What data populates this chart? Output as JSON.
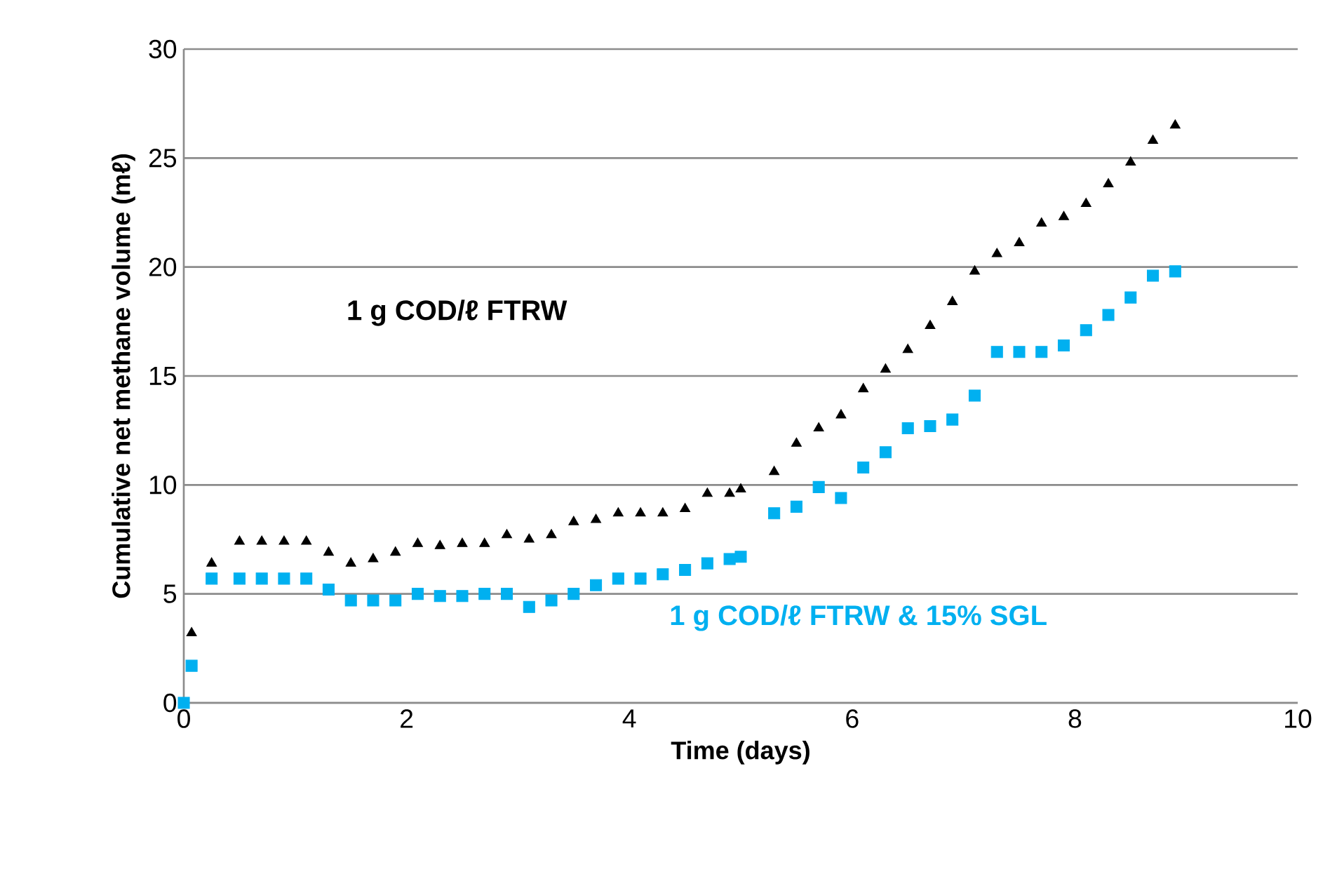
{
  "chart_data": {
    "type": "scatter",
    "xlabel": "Time (days)",
    "ylabel": "Cumulative net methane volume (mℓ)",
    "xlim": [
      0,
      10
    ],
    "ylim": [
      0,
      30
    ],
    "xticks": [
      0,
      2,
      4,
      6,
      8,
      10
    ],
    "yticks": [
      0,
      5,
      10,
      15,
      20,
      25,
      30
    ],
    "grid": "y",
    "series": [
      {
        "name": "1 g COD/ℓ FTRW",
        "color": "#000000",
        "marker": "triangle",
        "x": [
          0.07,
          0.25,
          0.5,
          0.7,
          0.9,
          1.1,
          1.3,
          1.5,
          1.7,
          1.9,
          2.1,
          2.3,
          2.5,
          2.7,
          2.9,
          3.1,
          3.3,
          3.5,
          3.7,
          3.9,
          4.1,
          4.3,
          4.5,
          4.7,
          4.9,
          5.0,
          5.3,
          5.5,
          5.7,
          5.9,
          6.1,
          6.3,
          6.5,
          6.7,
          6.9,
          7.1,
          7.3,
          7.5,
          7.7,
          7.9,
          8.1,
          8.3,
          8.5,
          8.7,
          8.9
        ],
        "values": [
          3.2,
          6.4,
          7.4,
          7.4,
          7.4,
          7.4,
          6.9,
          6.4,
          6.6,
          6.9,
          7.3,
          7.2,
          7.3,
          7.3,
          7.7,
          7.5,
          7.7,
          8.3,
          8.4,
          8.7,
          8.7,
          8.7,
          8.9,
          9.6,
          9.6,
          9.8,
          10.6,
          11.9,
          12.6,
          13.2,
          14.4,
          15.3,
          16.2,
          17.3,
          18.4,
          19.8,
          20.6,
          21.1,
          22.0,
          22.3,
          22.9,
          23.8,
          24.8,
          25.8,
          26.5
        ]
      },
      {
        "name": "1 g COD/ℓ FTRW & 15% SGL",
        "color": "#00b0f0",
        "marker": "square",
        "x": [
          0,
          0.07,
          0.25,
          0.5,
          0.7,
          0.9,
          1.1,
          1.3,
          1.5,
          1.7,
          1.9,
          2.1,
          2.3,
          2.5,
          2.7,
          2.9,
          3.1,
          3.3,
          3.5,
          3.7,
          3.9,
          4.1,
          4.3,
          4.5,
          4.7,
          4.9,
          5.0,
          5.3,
          5.5,
          5.7,
          5.9,
          6.1,
          6.3,
          6.5,
          6.7,
          6.9,
          7.1,
          7.3,
          7.5,
          7.7,
          7.9,
          8.1,
          8.3,
          8.5,
          8.7,
          8.9
        ],
        "values": [
          0,
          1.7,
          5.7,
          5.7,
          5.7,
          5.7,
          5.7,
          5.2,
          4.7,
          4.7,
          4.7,
          5.0,
          4.9,
          4.9,
          5.0,
          5.0,
          4.4,
          4.7,
          5.0,
          5.4,
          5.7,
          5.7,
          5.9,
          6.1,
          6.4,
          6.6,
          6.7,
          8.7,
          9.0,
          9.9,
          9.4,
          10.8,
          11.5,
          12.6,
          12.7,
          13.0,
          14.1,
          16.1,
          16.1,
          16.1,
          16.4,
          17.1,
          17.8,
          18.6,
          19.6,
          19.8
        ]
      }
    ]
  }
}
